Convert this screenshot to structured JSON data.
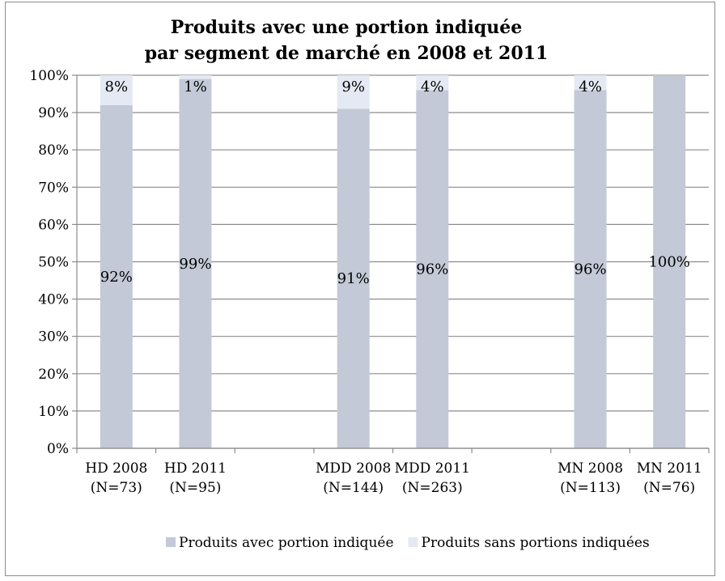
{
  "chart_data": {
    "type": "bar",
    "stacked": true,
    "title_lines": [
      "Produits avec une portion indiquée",
      "par segment de marché en 2008 et 2011"
    ],
    "ylim": [
      0,
      100
    ],
    "y_ticks": [
      "0%",
      "10%",
      "20%",
      "30%",
      "40%",
      "50%",
      "60%",
      "70%",
      "80%",
      "90%",
      "100%"
    ],
    "grid": true,
    "legend_position": "bottom",
    "categories": [
      {
        "line1": "HD 2008",
        "line2": "(N=73)"
      },
      {
        "line1": "HD 2011",
        "line2": "(N=95)"
      },
      {
        "line1": "",
        "line2": ""
      },
      {
        "line1": "MDD 2008",
        "line2": "(N=144)"
      },
      {
        "line1": "MDD 2011",
        "line2": "(N=263)"
      },
      {
        "line1": "",
        "line2": ""
      },
      {
        "line1": "MN 2008",
        "line2": "(N=113)"
      },
      {
        "line1": "MN 2011",
        "line2": "(N=76)"
      }
    ],
    "series": [
      {
        "name": "Produits avec portion indiquée",
        "color": "#c3c9d6",
        "values": [
          92,
          99,
          null,
          91,
          96,
          null,
          96,
          100
        ],
        "labels": [
          "92%",
          "99%",
          "",
          "91%",
          "96%",
          "",
          "96%",
          "100%"
        ]
      },
      {
        "name": "Produits sans portions indiquées",
        "color": "#e4e9f3",
        "values": [
          8,
          1,
          null,
          9,
          4,
          null,
          4,
          0
        ],
        "labels": [
          "8%",
          "1%",
          "",
          "9%",
          "4%",
          "",
          "4%",
          ""
        ]
      }
    ]
  }
}
